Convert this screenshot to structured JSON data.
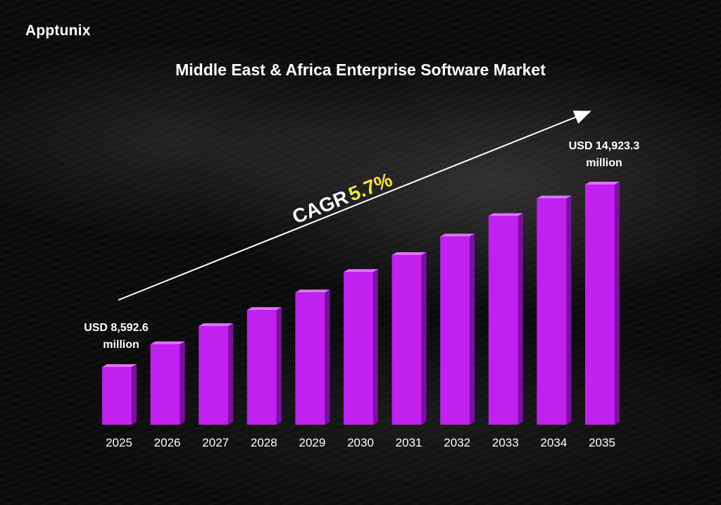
{
  "brand": {
    "logo_text": "Apptunix"
  },
  "chart_data": {
    "type": "bar",
    "title": "Middle East & Africa Enterprise Software Market",
    "categories": [
      "2025",
      "2026",
      "2027",
      "2028",
      "2029",
      "2030",
      "2031",
      "2032",
      "2033",
      "2034",
      "2035"
    ],
    "values": [
      8592.6,
      9380,
      10010,
      10570,
      11180,
      11890,
      12480,
      13120,
      13830,
      14440,
      14923.3
    ],
    "unit": "USD million",
    "annotations": {
      "start_line1": "USD 8,592.6",
      "start_line2": "million",
      "end_line1": "USD 14,923.3",
      "end_line2": "million",
      "cagr_label": "CAGR",
      "cagr_value": "5.7%"
    },
    "colors": {
      "bar_front": "#c020f0",
      "bar_top": "#e070ff",
      "bar_side": "#7a0fa0",
      "cagr_value": "#f5e63a",
      "text": "#ffffff"
    },
    "grid": false,
    "axes_visible": false
  }
}
